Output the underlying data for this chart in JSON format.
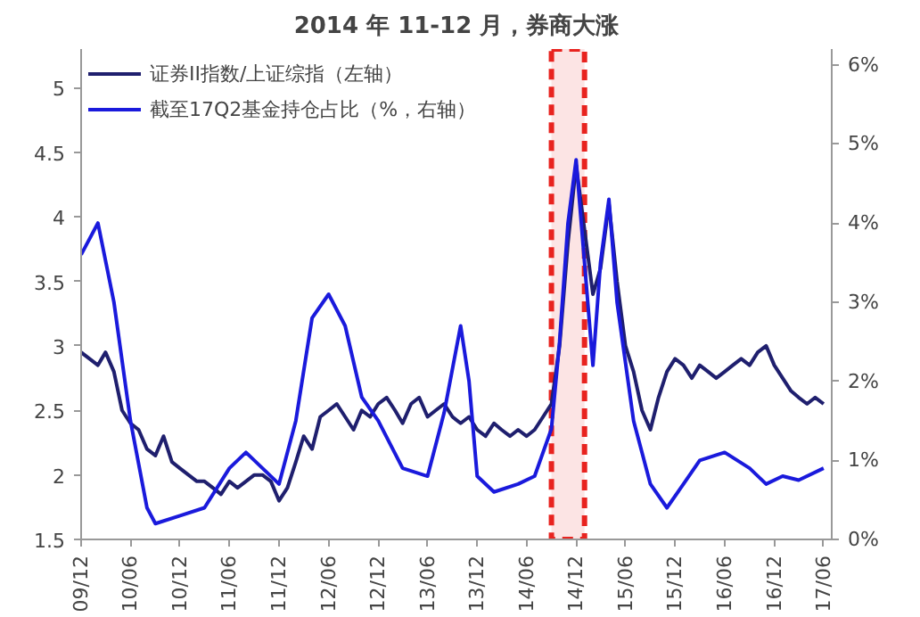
{
  "chart_data": {
    "type": "line",
    "title": "2014 年 11-12 月，券商大涨",
    "xlim": [
      "2009-12",
      "2017-07"
    ],
    "xticks": [
      {
        "value": "2009-12",
        "label": "09/12"
      },
      {
        "value": "2010-06",
        "label": "10/06"
      },
      {
        "value": "2010-12",
        "label": "10/12"
      },
      {
        "value": "2011-06",
        "label": "11/06"
      },
      {
        "value": "2011-12",
        "label": "11/12"
      },
      {
        "value": "2012-06",
        "label": "12/06"
      },
      {
        "value": "2012-12",
        "label": "12/12"
      },
      {
        "value": "2013-06",
        "label": "13/06"
      },
      {
        "value": "2013-12",
        "label": "13/12"
      },
      {
        "value": "2014-06",
        "label": "14/06"
      },
      {
        "value": "2014-12",
        "label": "14/12"
      },
      {
        "value": "2015-06",
        "label": "15/06"
      },
      {
        "value": "2015-12",
        "label": "15/12"
      },
      {
        "value": "2016-06",
        "label": "16/06"
      },
      {
        "value": "2016-12",
        "label": "16/12"
      },
      {
        "value": "2017-06",
        "label": "17/06"
      }
    ],
    "ylim": [
      1.5,
      5.3
    ],
    "yticks": [
      1.5,
      2,
      2.5,
      3,
      3.5,
      4,
      4.5,
      5
    ],
    "y2lim": [
      0,
      6.2
    ],
    "y2ticks": [
      {
        "value": 0,
        "label": "0%"
      },
      {
        "value": 1,
        "label": "1%"
      },
      {
        "value": 2,
        "label": "2%"
      },
      {
        "value": 3,
        "label": "3%"
      },
      {
        "value": 4,
        "label": "4%"
      },
      {
        "value": 5,
        "label": "5%"
      },
      {
        "value": 6,
        "label": "6%"
      }
    ],
    "grid": false,
    "legend": "top left",
    "bands": [
      {
        "axis": "x",
        "from": "2014-09",
        "to": "2015-01",
        "color": "#e8231f"
      }
    ],
    "series": [
      {
        "name": "证券II指数/上证综指（左轴）",
        "color": "#1f1f6e",
        "x": [
          "2009-12",
          "2010-01",
          "2010-02",
          "2010-03",
          "2010-04",
          "2010-05",
          "2010-06",
          "2010-07",
          "2010-08",
          "2010-09",
          "2010-10",
          "2010-11",
          "2010-12",
          "2011-01",
          "2011-02",
          "2011-03",
          "2011-04",
          "2011-05",
          "2011-06",
          "2011-07",
          "2011-08",
          "2011-09",
          "2011-10",
          "2011-11",
          "2011-12",
          "2012-01",
          "2012-02",
          "2012-03",
          "2012-04",
          "2012-05",
          "2012-06",
          "2012-07",
          "2012-08",
          "2012-09",
          "2012-10",
          "2012-11",
          "2012-12",
          "2013-01",
          "2013-02",
          "2013-03",
          "2013-04",
          "2013-05",
          "2013-06",
          "2013-07",
          "2013-08",
          "2013-09",
          "2013-10",
          "2013-11",
          "2013-12",
          "2014-01",
          "2014-02",
          "2014-03",
          "2014-04",
          "2014-05",
          "2014-06",
          "2014-07",
          "2014-08",
          "2014-09",
          "2014-10",
          "2014-11",
          "2014-12",
          "2015-01",
          "2015-02",
          "2015-03",
          "2015-04",
          "2015-05",
          "2015-06",
          "2015-07",
          "2015-08",
          "2015-09",
          "2015-10",
          "2015-11",
          "2015-12",
          "2016-01",
          "2016-02",
          "2016-03",
          "2016-04",
          "2016-05",
          "2016-06",
          "2016-07",
          "2016-08",
          "2016-09",
          "2016-10",
          "2016-11",
          "2016-12",
          "2017-01",
          "2017-02",
          "2017-03",
          "2017-04",
          "2017-05",
          "2017-06"
        ],
        "values": [
          2.95,
          2.9,
          2.85,
          2.95,
          2.8,
          2.5,
          2.4,
          2.35,
          2.2,
          2.15,
          2.3,
          2.1,
          2.05,
          2.0,
          1.95,
          1.95,
          1.9,
          1.85,
          1.95,
          1.9,
          1.95,
          2.0,
          2.0,
          1.95,
          1.8,
          1.9,
          2.1,
          2.3,
          2.2,
          2.45,
          2.5,
          2.55,
          2.45,
          2.35,
          2.5,
          2.45,
          2.55,
          2.6,
          2.5,
          2.4,
          2.55,
          2.6,
          2.45,
          2.5,
          2.55,
          2.45,
          2.4,
          2.45,
          2.35,
          2.3,
          2.4,
          2.35,
          2.3,
          2.35,
          2.3,
          2.35,
          2.45,
          2.55,
          3.0,
          3.8,
          4.4,
          3.9,
          3.4,
          3.6,
          4.1,
          3.5,
          3.0,
          2.8,
          2.5,
          2.35,
          2.6,
          2.8,
          2.9,
          2.85,
          2.75,
          2.85,
          2.8,
          2.75,
          2.8,
          2.85,
          2.9,
          2.85,
          2.95,
          3.0,
          2.85,
          2.75,
          2.65,
          2.6,
          2.55,
          2.6,
          2.55
        ]
      },
      {
        "name": "截至17Q2基金持仓占比（%，右轴）",
        "color": "#1a1adc",
        "axis": "y2",
        "x": [
          "2009-12",
          "2010-02",
          "2010-04",
          "2010-06",
          "2010-08",
          "2010-09",
          "2010-12",
          "2011-03",
          "2011-06",
          "2011-08",
          "2011-10",
          "2011-12",
          "2012-02",
          "2012-04",
          "2012-06",
          "2012-08",
          "2012-10",
          "2012-12",
          "2013-03",
          "2013-06",
          "2013-08",
          "2013-10",
          "2013-11",
          "2013-12",
          "2014-02",
          "2014-05",
          "2014-07",
          "2014-09",
          "2014-10",
          "2014-11",
          "2014-12",
          "2015-01",
          "2015-02",
          "2015-03",
          "2015-04",
          "2015-05",
          "2015-07",
          "2015-09",
          "2015-11",
          "2016-01",
          "2016-03",
          "2016-06",
          "2016-09",
          "2016-11",
          "2017-01",
          "2017-03",
          "2017-06"
        ],
        "values": [
          3.6,
          4.0,
          3.0,
          1.5,
          0.4,
          0.2,
          0.3,
          0.4,
          0.9,
          1.1,
          0.9,
          0.7,
          1.5,
          2.8,
          3.1,
          2.7,
          1.8,
          1.5,
          0.9,
          0.8,
          1.6,
          2.7,
          2.0,
          0.8,
          0.6,
          0.7,
          0.8,
          1.4,
          2.5,
          4.0,
          4.8,
          3.5,
          2.2,
          3.5,
          4.3,
          3.0,
          1.5,
          0.7,
          0.4,
          0.7,
          1.0,
          1.1,
          0.9,
          0.7,
          0.8,
          0.75,
          0.9
        ]
      }
    ]
  }
}
